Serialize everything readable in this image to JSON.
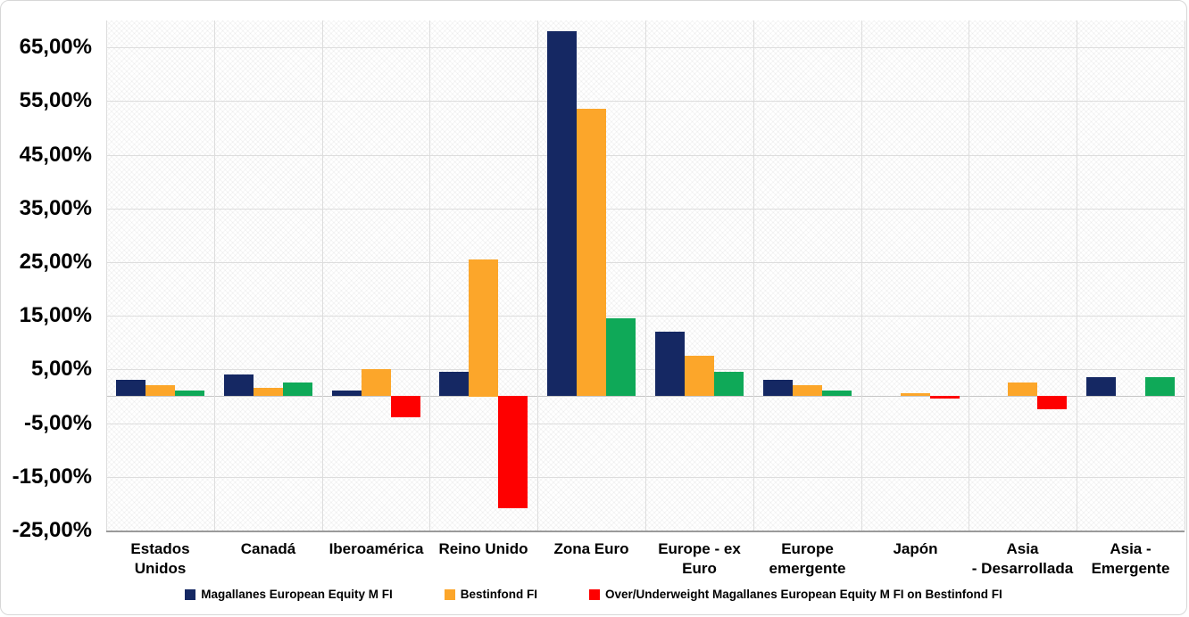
{
  "chart_data": {
    "type": "bar",
    "title": "",
    "xlabel": "",
    "ylabel": "",
    "ylim": [
      -25,
      70
    ],
    "grid": true,
    "legend_position": "bottom",
    "categories": [
      "Estados Unidos",
      "Canadá",
      "Iberoamérica",
      "Reino Unido",
      "Zona Euro",
      "Europe - ex\nEuro",
      "Europe\nemergente",
      "Japón",
      "Asia\n- Desarrollada",
      "Asia -\nEmergente"
    ],
    "series": [
      {
        "name": "Magallanes European Equity M FI",
        "color": "#152863",
        "values": [
          3.0,
          4.0,
          1.0,
          4.5,
          68.0,
          12.0,
          3.0,
          0,
          0,
          3.5
        ]
      },
      {
        "name": "Bestinfond FI",
        "color": "#FCA62A",
        "values": [
          2.0,
          1.5,
          5.0,
          25.5,
          53.5,
          7.5,
          2.0,
          0.5,
          2.5,
          0
        ]
      },
      {
        "name": "Over/Underweight Magallanes European Equity M FI on Bestinfond FI",
        "color": "#FE0000",
        "color_positive": "#0FA958",
        "values": [
          1.0,
          2.5,
          -4.0,
          -21.0,
          14.5,
          4.5,
          1.0,
          -0.5,
          -2.5,
          3.5
        ]
      }
    ],
    "yticks": [
      "65,00%",
      "55,00%",
      "45,00%",
      "35,00%",
      "25,00%",
      "15,00%",
      "5,00%",
      "-5,00%",
      "-15,00%",
      "-25,00%"
    ],
    "ytick_values": [
      65,
      55,
      45,
      35,
      25,
      15,
      5,
      -5,
      -15,
      -25
    ]
  },
  "colors": {
    "gridline": "#dddddd",
    "zero_line": "#c6c6c6",
    "axis_line": "#9a9a9a",
    "text": "#000000",
    "background": "#ffffff"
  }
}
